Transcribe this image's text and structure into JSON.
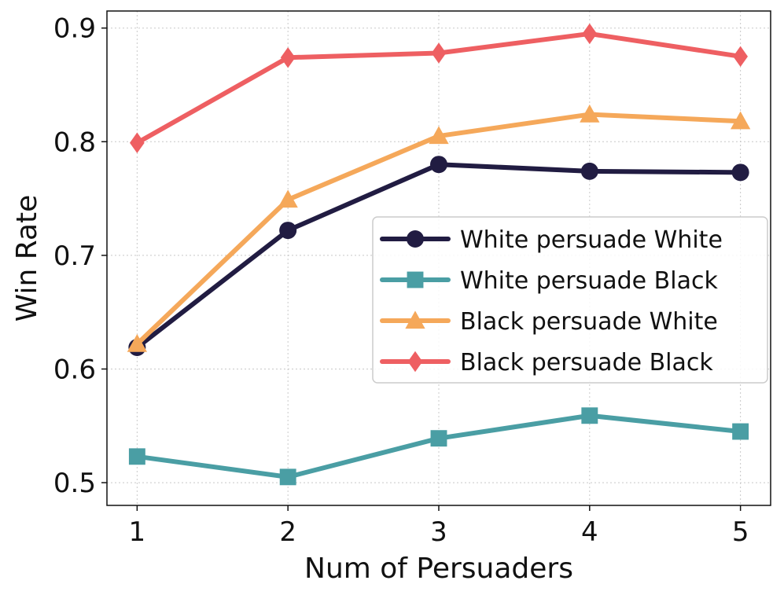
{
  "chart_data": {
    "type": "line",
    "xlabel": "Num of Persuaders",
    "ylabel": "Win Rate",
    "x": [
      1,
      2,
      3,
      4,
      5
    ],
    "xlim": [
      0.8,
      5.2
    ],
    "ylim": [
      0.48,
      0.915
    ],
    "xticks": [
      1,
      2,
      3,
      4,
      5
    ],
    "yticks": [
      0.5,
      0.6,
      0.7,
      0.8,
      0.9
    ],
    "ytick_labels": [
      "0.5",
      "0.6",
      "0.7",
      "0.8",
      "0.9"
    ],
    "grid": true,
    "legend_position": "center-right",
    "series": [
      {
        "name": "White persuade White",
        "color": "#211c42",
        "marker": "circle",
        "values": [
          0.619,
          0.722,
          0.78,
          0.774,
          0.773
        ]
      },
      {
        "name": "White persuade Black",
        "color": "#4a9ea4",
        "marker": "square",
        "values": [
          0.523,
          0.505,
          0.539,
          0.559,
          0.545
        ]
      },
      {
        "name": "Black persuade White",
        "color": "#f5a85a",
        "marker": "triangle",
        "values": [
          0.622,
          0.749,
          0.805,
          0.824,
          0.818
        ]
      },
      {
        "name": "Black persuade Black",
        "color": "#ee5f62",
        "marker": "diamond",
        "values": [
          0.799,
          0.874,
          0.878,
          0.895,
          0.875
        ]
      }
    ]
  }
}
